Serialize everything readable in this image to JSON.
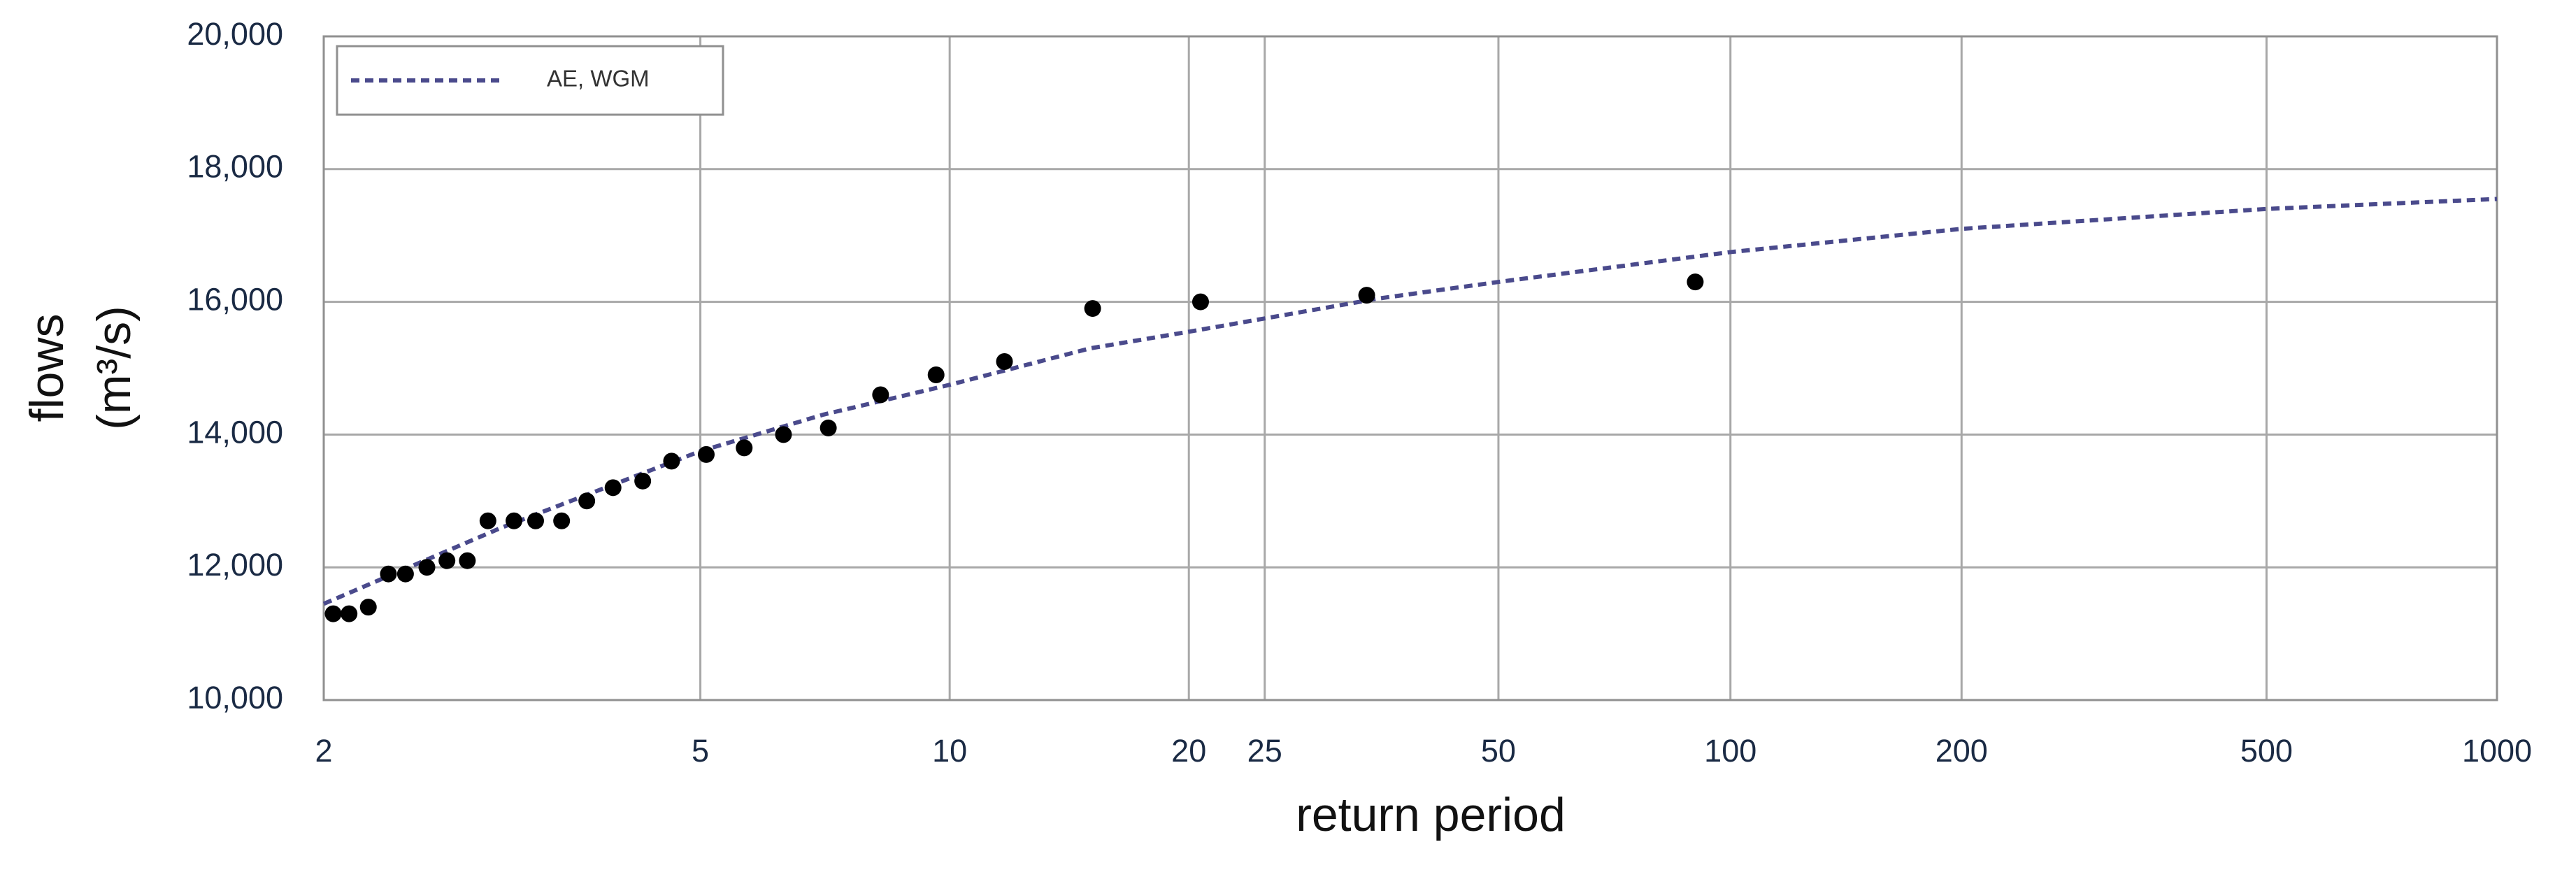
{
  "chart_data": {
    "type": "scatter",
    "xlabel": "return period",
    "ylabel": [
      "flows",
      "(m³/s)"
    ],
    "xscale": "gumbel",
    "xlim": [
      2,
      1000
    ],
    "xticks": [
      2,
      5,
      10,
      20,
      25,
      50,
      100,
      200,
      500,
      1000
    ],
    "ylim": [
      10000,
      20000
    ],
    "yticks": [
      {
        "value": 10000,
        "label": "10,000"
      },
      {
        "value": 12000,
        "label": "12,000"
      },
      {
        "value": 14000,
        "label": "14,000"
      },
      {
        "value": 16000,
        "label": "16,000"
      },
      {
        "value": 18000,
        "label": "18,000"
      },
      {
        "value": 20000,
        "label": "20,000"
      }
    ],
    "grid": true,
    "legend": "upper left",
    "series": [
      {
        "name": "AE, WGM",
        "color": "#4a4a8c",
        "mark": "dashed-line",
        "x": [
          2,
          3,
          5,
          7,
          10,
          15,
          20,
          25,
          35,
          50,
          100,
          200,
          500,
          1000
        ],
        "values": [
          11450,
          12600,
          13750,
          14300,
          14750,
          15300,
          15550,
          15750,
          16050,
          16300,
          16750,
          17100,
          17400,
          17550
        ]
      },
      {
        "color": "#000000",
        "mark": "dot",
        "x": [
          2.04,
          2.11,
          2.2,
          2.3,
          2.39,
          2.51,
          2.63,
          2.76,
          2.9,
          3.09,
          3.26,
          3.48,
          3.71,
          3.97,
          4.29,
          4.63,
          5.08,
          5.63,
          6.27,
          7.1,
          8.22,
          9.62,
          11.7,
          15.1,
          20.7,
          33.8,
          90
        ],
        "values": [
          11300,
          11300,
          11400,
          11900,
          11900,
          12000,
          12100,
          12100,
          12700,
          12700,
          12700,
          12700,
          13000,
          13200,
          13300,
          13600,
          13700,
          13800,
          14000,
          14100,
          14600,
          14900,
          15100,
          15900,
          16000,
          16100,
          16300
        ]
      }
    ]
  }
}
